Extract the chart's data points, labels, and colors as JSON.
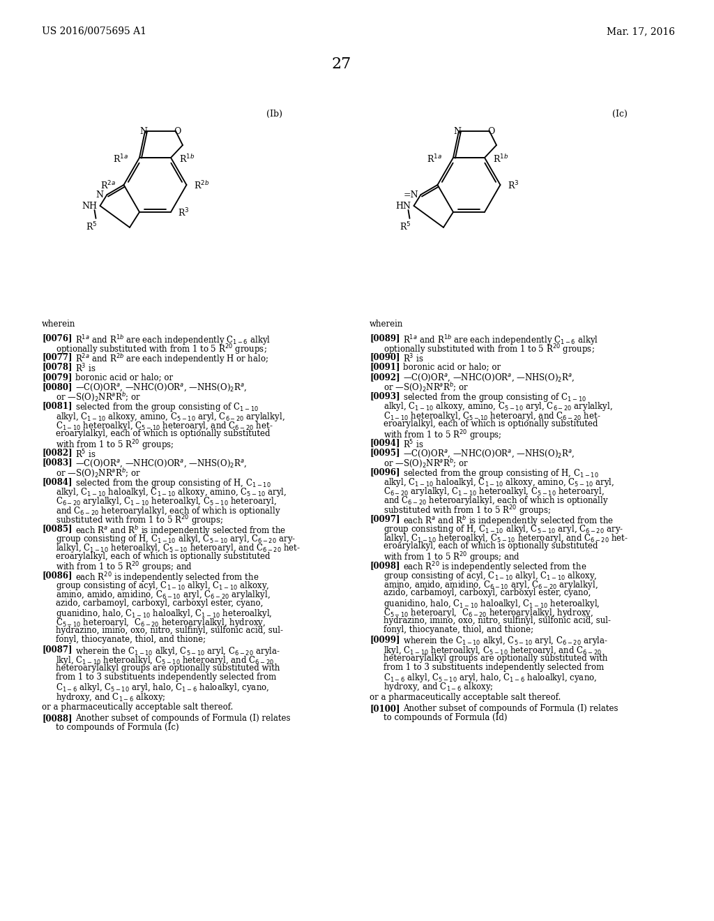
{
  "page_header_left": "US 2016/0075695 A1",
  "page_header_right": "Mar. 17, 2016",
  "page_number": "27",
  "label_Ib": "(Ib)",
  "label_Ic": "(Ic)",
  "bg_color": "#ffffff",
  "text_color": "#000000"
}
